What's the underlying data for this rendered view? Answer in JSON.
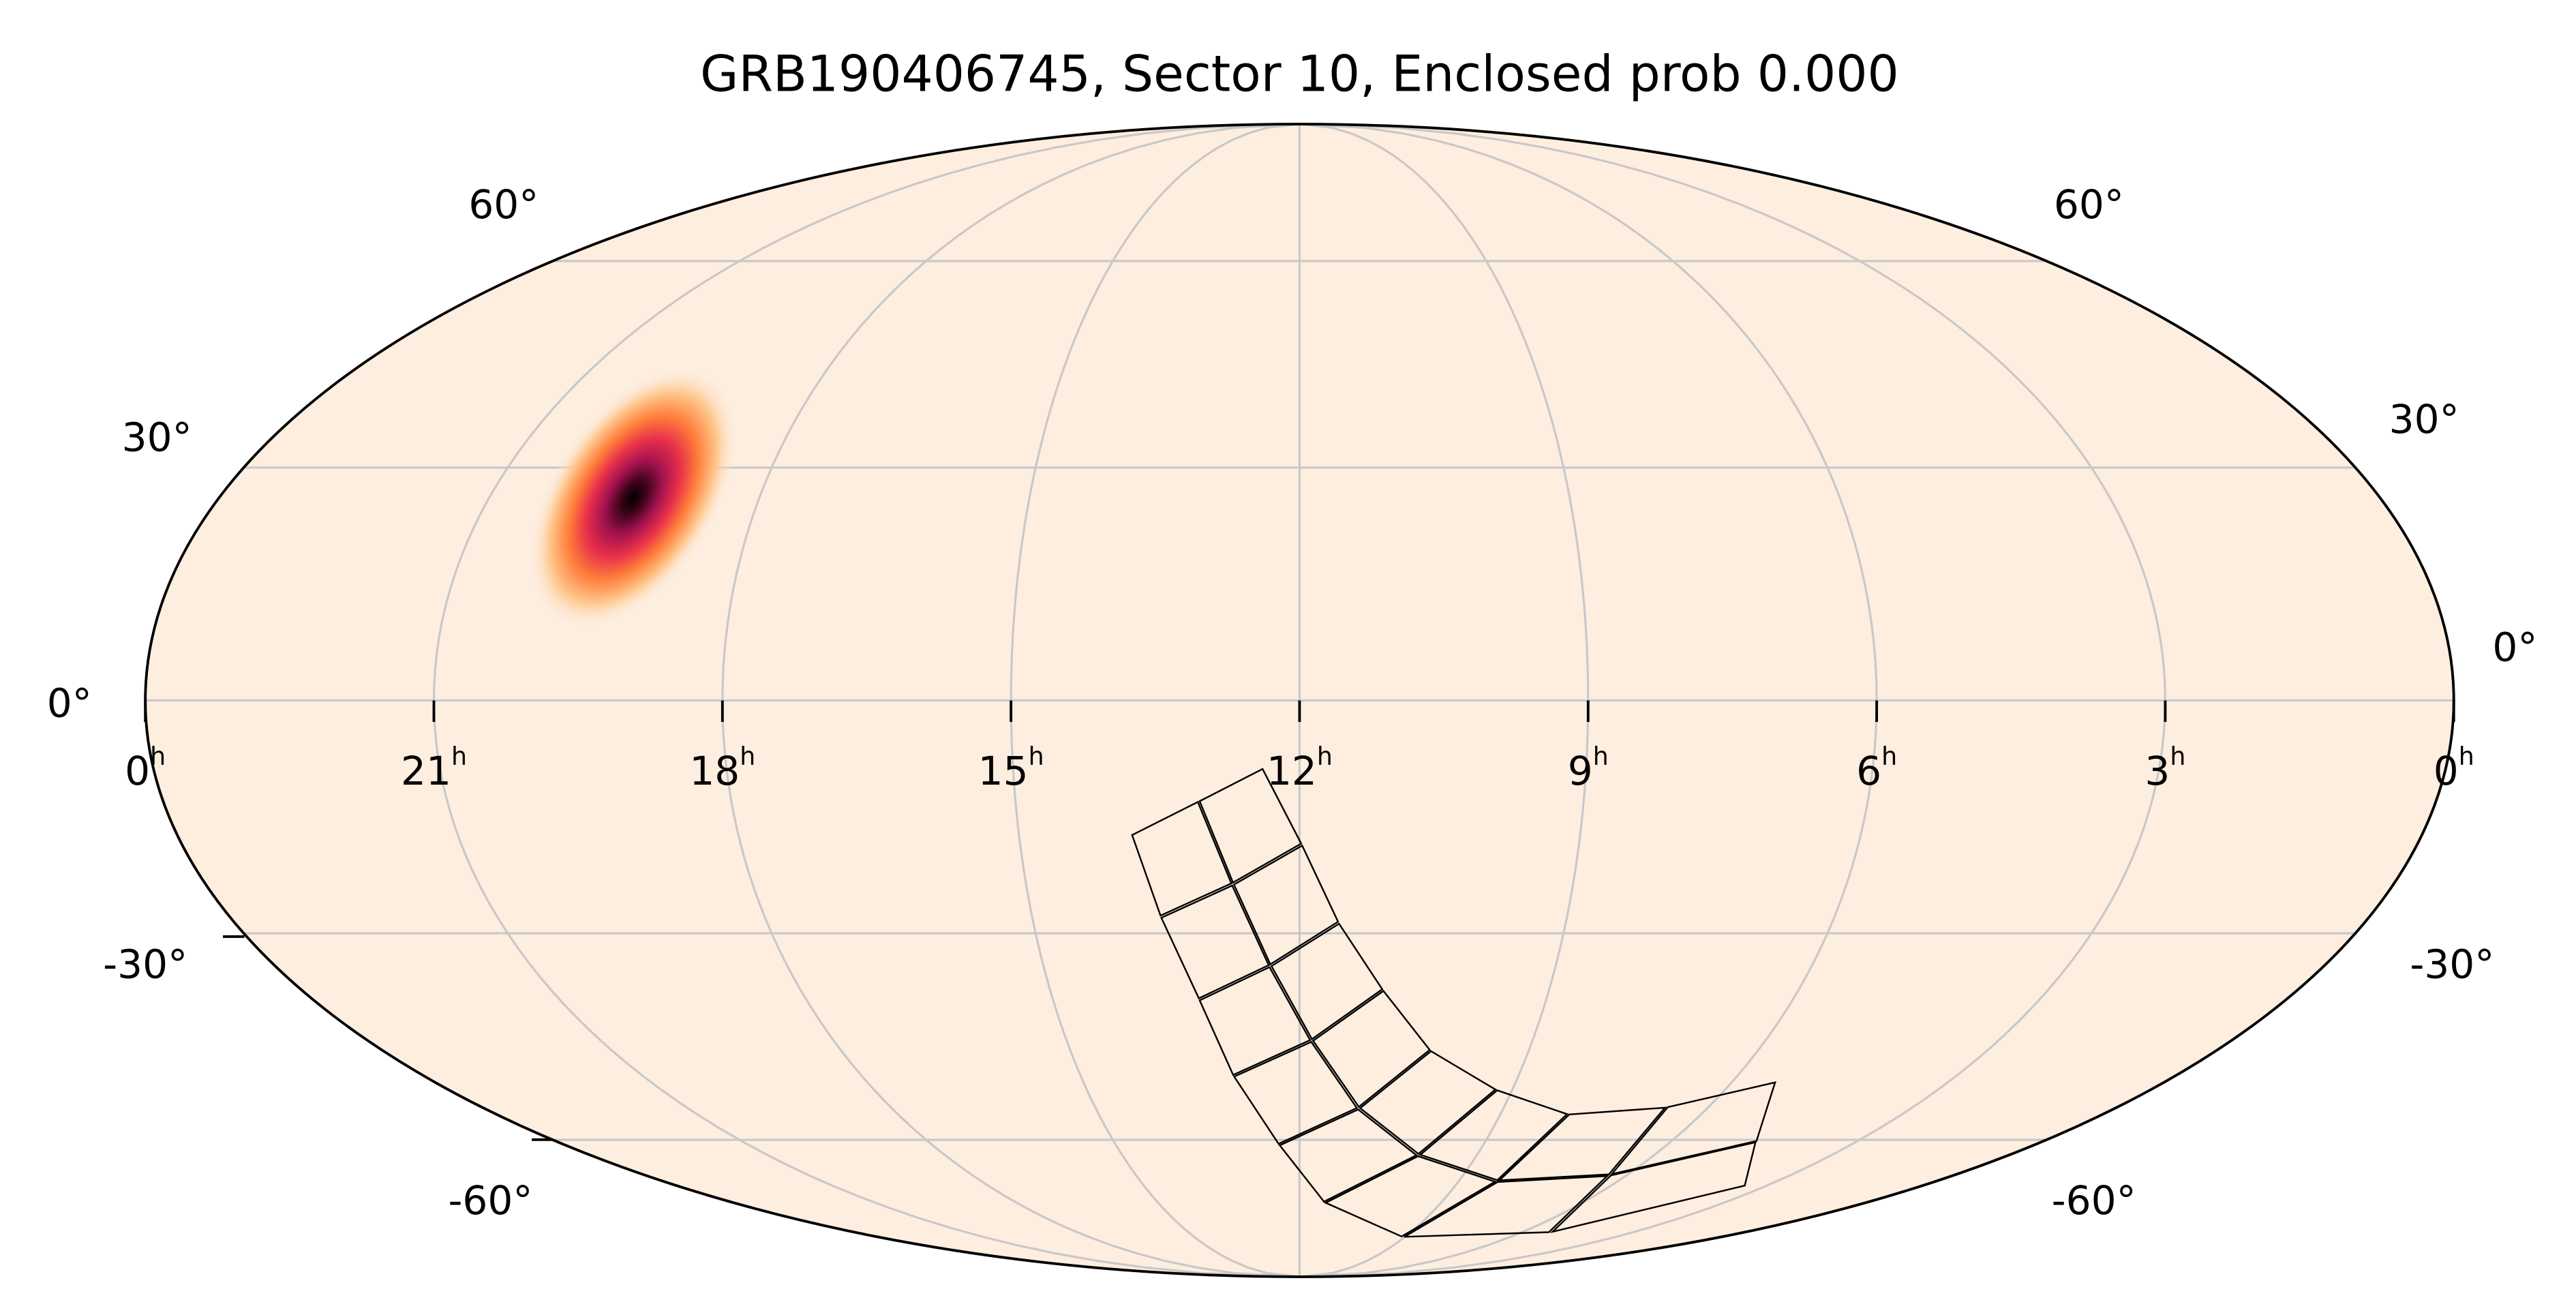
{
  "chart_data": {
    "type": "heatmap",
    "projection": "mollweide",
    "title": "GRB190406745, Sector 10, Enclosed prob 0.000",
    "background_color": "#fdeee0",
    "colormap": [
      "#fdeee0",
      "#ffc58a",
      "#ff7d3a",
      "#e8304a",
      "#a3124f",
      "#3a0318",
      "#000000"
    ],
    "ra_ticks": [
      {
        "ra": 24,
        "label": "0",
        "unit": "h"
      },
      {
        "ra": 21,
        "label": "21",
        "unit": "h"
      },
      {
        "ra": 18,
        "label": "18",
        "unit": "h"
      },
      {
        "ra": 15,
        "label": "15",
        "unit": "h"
      },
      {
        "ra": 12,
        "label": "12",
        "unit": "h"
      },
      {
        "ra": 9,
        "label": "9",
        "unit": "h"
      },
      {
        "ra": 6,
        "label": "6",
        "unit": "h"
      },
      {
        "ra": 3,
        "label": "3",
        "unit": "h"
      },
      {
        "ra": 0,
        "label": "0",
        "unit": "h"
      }
    ],
    "dec_ticks": [
      {
        "dec": 60,
        "label": "60°"
      },
      {
        "dec": 30,
        "label": "30°"
      },
      {
        "dec": 0,
        "label": "0°"
      },
      {
        "dec": -30,
        "label": "-30°"
      },
      {
        "dec": -60,
        "label": "-60°"
      }
    ],
    "grid": true,
    "localization_peak": {
      "ra_h": 19.4,
      "dec_deg": 26
    },
    "footprint": {
      "sector": 10,
      "cameras": 4,
      "ccds_per_camera": 4
    },
    "enclosed_prob": 0.0
  }
}
